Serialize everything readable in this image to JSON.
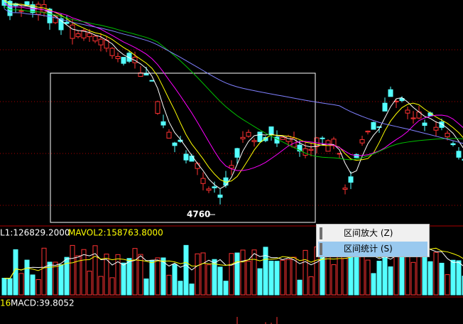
{
  "price_panel": {
    "low_marker": "4760"
  },
  "volume_panel": {
    "label_1": "L1:126829.2000",
    "label_2": "MAVOL2:158763.8000"
  },
  "macd_panel": {
    "label_1": "16",
    "label_2": "MACD:39.8052"
  },
  "context_menu": {
    "items": [
      "区间放大 (Z)",
      "区间统计 (S)"
    ]
  }
}
